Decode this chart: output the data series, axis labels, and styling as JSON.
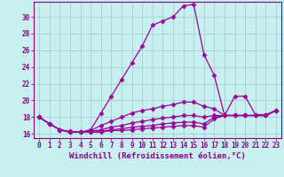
{
  "title": "",
  "xlabel": "Windchill (Refroidissement éolien,°C)",
  "ylabel": "",
  "background_color": "#c8f0f0",
  "grid_color": "#a0c8c8",
  "line_color": "#990099",
  "xlim": [
    -0.5,
    23.5
  ],
  "ylim": [
    15.5,
    31.8
  ],
  "xtick_labels": [
    "0",
    "1",
    "2",
    "3",
    "4",
    "5",
    "6",
    "7",
    "8",
    "9",
    "10",
    "11",
    "12",
    "13",
    "14",
    "15",
    "16",
    "17",
    "18",
    "19",
    "20",
    "21",
    "22",
    "23"
  ],
  "ytick_values": [
    16,
    18,
    20,
    22,
    24,
    26,
    28,
    30
  ],
  "series": [
    [
      18.0,
      17.2,
      16.5,
      16.3,
      16.2,
      16.5,
      18.5,
      20.5,
      22.5,
      24.5,
      26.5,
      29.0,
      29.5,
      30.0,
      31.3,
      31.5,
      25.5,
      23.0,
      18.2,
      20.5,
      20.5,
      18.3,
      18.3,
      18.8
    ],
    [
      18.0,
      17.2,
      16.5,
      16.2,
      16.2,
      16.4,
      17.0,
      17.5,
      18.0,
      18.5,
      18.8,
      19.0,
      19.3,
      19.5,
      19.8,
      19.8,
      19.3,
      19.0,
      18.2,
      18.2,
      18.2,
      18.2,
      18.2,
      18.8
    ],
    [
      18.0,
      17.2,
      16.5,
      16.2,
      16.2,
      16.3,
      16.5,
      16.8,
      17.0,
      17.3,
      17.5,
      17.7,
      17.9,
      18.0,
      18.2,
      18.2,
      18.0,
      18.2,
      18.2,
      18.2,
      18.2,
      18.2,
      18.2,
      18.8
    ],
    [
      18.0,
      17.2,
      16.5,
      16.2,
      16.2,
      16.2,
      16.3,
      16.5,
      16.6,
      16.8,
      16.9,
      17.0,
      17.2,
      17.3,
      17.4,
      17.4,
      17.2,
      18.0,
      18.2,
      18.2,
      18.2,
      18.2,
      18.2,
      18.8
    ],
    [
      18.0,
      17.2,
      16.5,
      16.2,
      16.2,
      16.2,
      16.2,
      16.4,
      16.4,
      16.5,
      16.6,
      16.7,
      16.8,
      16.9,
      17.0,
      17.0,
      16.8,
      17.8,
      18.2,
      18.2,
      18.2,
      18.2,
      18.2,
      18.8
    ]
  ],
  "marker": "D",
  "markersize": 2.5,
  "linewidth": 0.9,
  "font_color": "#880088",
  "tick_fontsize": 5.5,
  "label_fontsize": 6.5
}
